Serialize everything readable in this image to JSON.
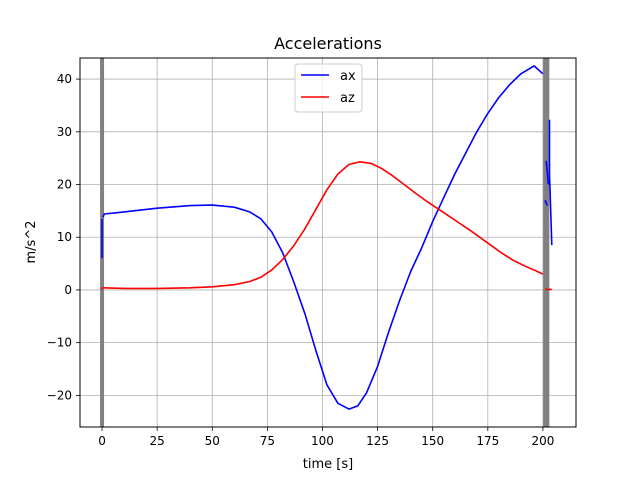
{
  "chart_data": {
    "type": "line",
    "title": "Accelerations",
    "xlabel": "time [s]",
    "ylabel": "m/s^2",
    "xlim": [
      -10,
      215
    ],
    "ylim": [
      -26,
      44
    ],
    "x_ticks": [
      0,
      25,
      50,
      75,
      100,
      125,
      150,
      175,
      200
    ],
    "y_ticks": [
      -20,
      -10,
      0,
      10,
      20,
      30,
      40
    ],
    "x_tick_labels": [
      "0",
      "25",
      "50",
      "75",
      "100",
      "125",
      "150",
      "175",
      "200"
    ],
    "y_tick_labels": [
      "−20",
      "−10",
      "0",
      "10",
      "20",
      "30",
      "40"
    ],
    "grid": true,
    "legend": {
      "position": "upper center",
      "entries": [
        "ax",
        "az"
      ]
    },
    "colors": {
      "ax": "#0000ff",
      "az": "#ff0000",
      "markers": "#808080",
      "grid": "#b0b0b0"
    },
    "vertical_markers": [
      0,
      201,
      202
    ],
    "series": [
      {
        "name": "ax",
        "color": "#0000ff",
        "segments": [
          [
            [
              0,
              6
            ],
            [
              0,
              13.5
            ]
          ],
          [
            [
              0.5,
              13.8
            ],
            [
              1,
              14.4
            ],
            [
              10,
              14.8
            ],
            [
              25,
              15.5
            ],
            [
              40,
              16.0
            ],
            [
              50,
              16.1
            ],
            [
              60,
              15.7
            ],
            [
              67,
              14.8
            ],
            [
              72,
              13.5
            ],
            [
              77,
              11.0
            ],
            [
              82,
              7.0
            ],
            [
              87,
              1.5
            ],
            [
              92,
              -4.5
            ],
            [
              97,
              -11.5
            ],
            [
              102,
              -18
            ],
            [
              107,
              -21.5
            ],
            [
              112,
              -22.6
            ],
            [
              116,
              -22.0
            ],
            [
              120,
              -19.5
            ],
            [
              125,
              -14.5
            ],
            [
              130,
              -8.0
            ],
            [
              135,
              -2.0
            ],
            [
              140,
              3.5
            ],
            [
              145,
              8.0
            ],
            [
              150,
              13.0
            ],
            [
              155,
              17.5
            ],
            [
              160,
              22.0
            ],
            [
              165,
              26.0
            ],
            [
              170,
              30.0
            ],
            [
              175,
              33.5
            ],
            [
              180,
              36.5
            ],
            [
              185,
              39.0
            ],
            [
              190,
              41.0
            ],
            [
              196,
              42.5
            ],
            [
              200,
              41.0
            ]
          ],
          [
            [
              201,
              17.0
            ],
            [
              202,
              16.0
            ]
          ],
          [
            [
              201.5,
              24.5
            ],
            [
              202.5,
              20.0
            ]
          ],
          [
            [
              203,
              32.3
            ],
            [
              203,
              22.0
            ],
            [
              204,
              8.5
            ]
          ]
        ]
      },
      {
        "name": "az",
        "color": "#ff0000",
        "segments": [
          [
            [
              0,
              0
            ],
            [
              0,
              0.5
            ]
          ],
          [
            [
              0.5,
              0.4
            ],
            [
              10,
              0.3
            ],
            [
              25,
              0.3
            ],
            [
              40,
              0.4
            ],
            [
              50,
              0.6
            ],
            [
              60,
              1.0
            ],
            [
              67,
              1.6
            ],
            [
              72,
              2.4
            ],
            [
              77,
              3.8
            ],
            [
              82,
              5.8
            ],
            [
              87,
              8.4
            ],
            [
              92,
              11.6
            ],
            [
              97,
              15.3
            ],
            [
              102,
              19.0
            ],
            [
              107,
              22.0
            ],
            [
              112,
              23.8
            ],
            [
              117,
              24.3
            ],
            [
              122,
              24.0
            ],
            [
              127,
              23.0
            ],
            [
              132,
              21.6
            ],
            [
              137,
              20.0
            ],
            [
              142,
              18.4
            ],
            [
              147,
              16.9
            ],
            [
              152,
              15.5
            ],
            [
              157,
              14.1
            ],
            [
              162,
              12.7
            ],
            [
              167,
              11.3
            ],
            [
              172,
              9.8
            ],
            [
              177,
              8.3
            ],
            [
              182,
              6.8
            ],
            [
              187,
              5.5
            ],
            [
              192,
              4.5
            ],
            [
              197,
              3.6
            ],
            [
              200,
              3.0
            ]
          ],
          [
            [
              201,
              0.1
            ],
            [
              204,
              0.1
            ]
          ]
        ]
      }
    ]
  }
}
